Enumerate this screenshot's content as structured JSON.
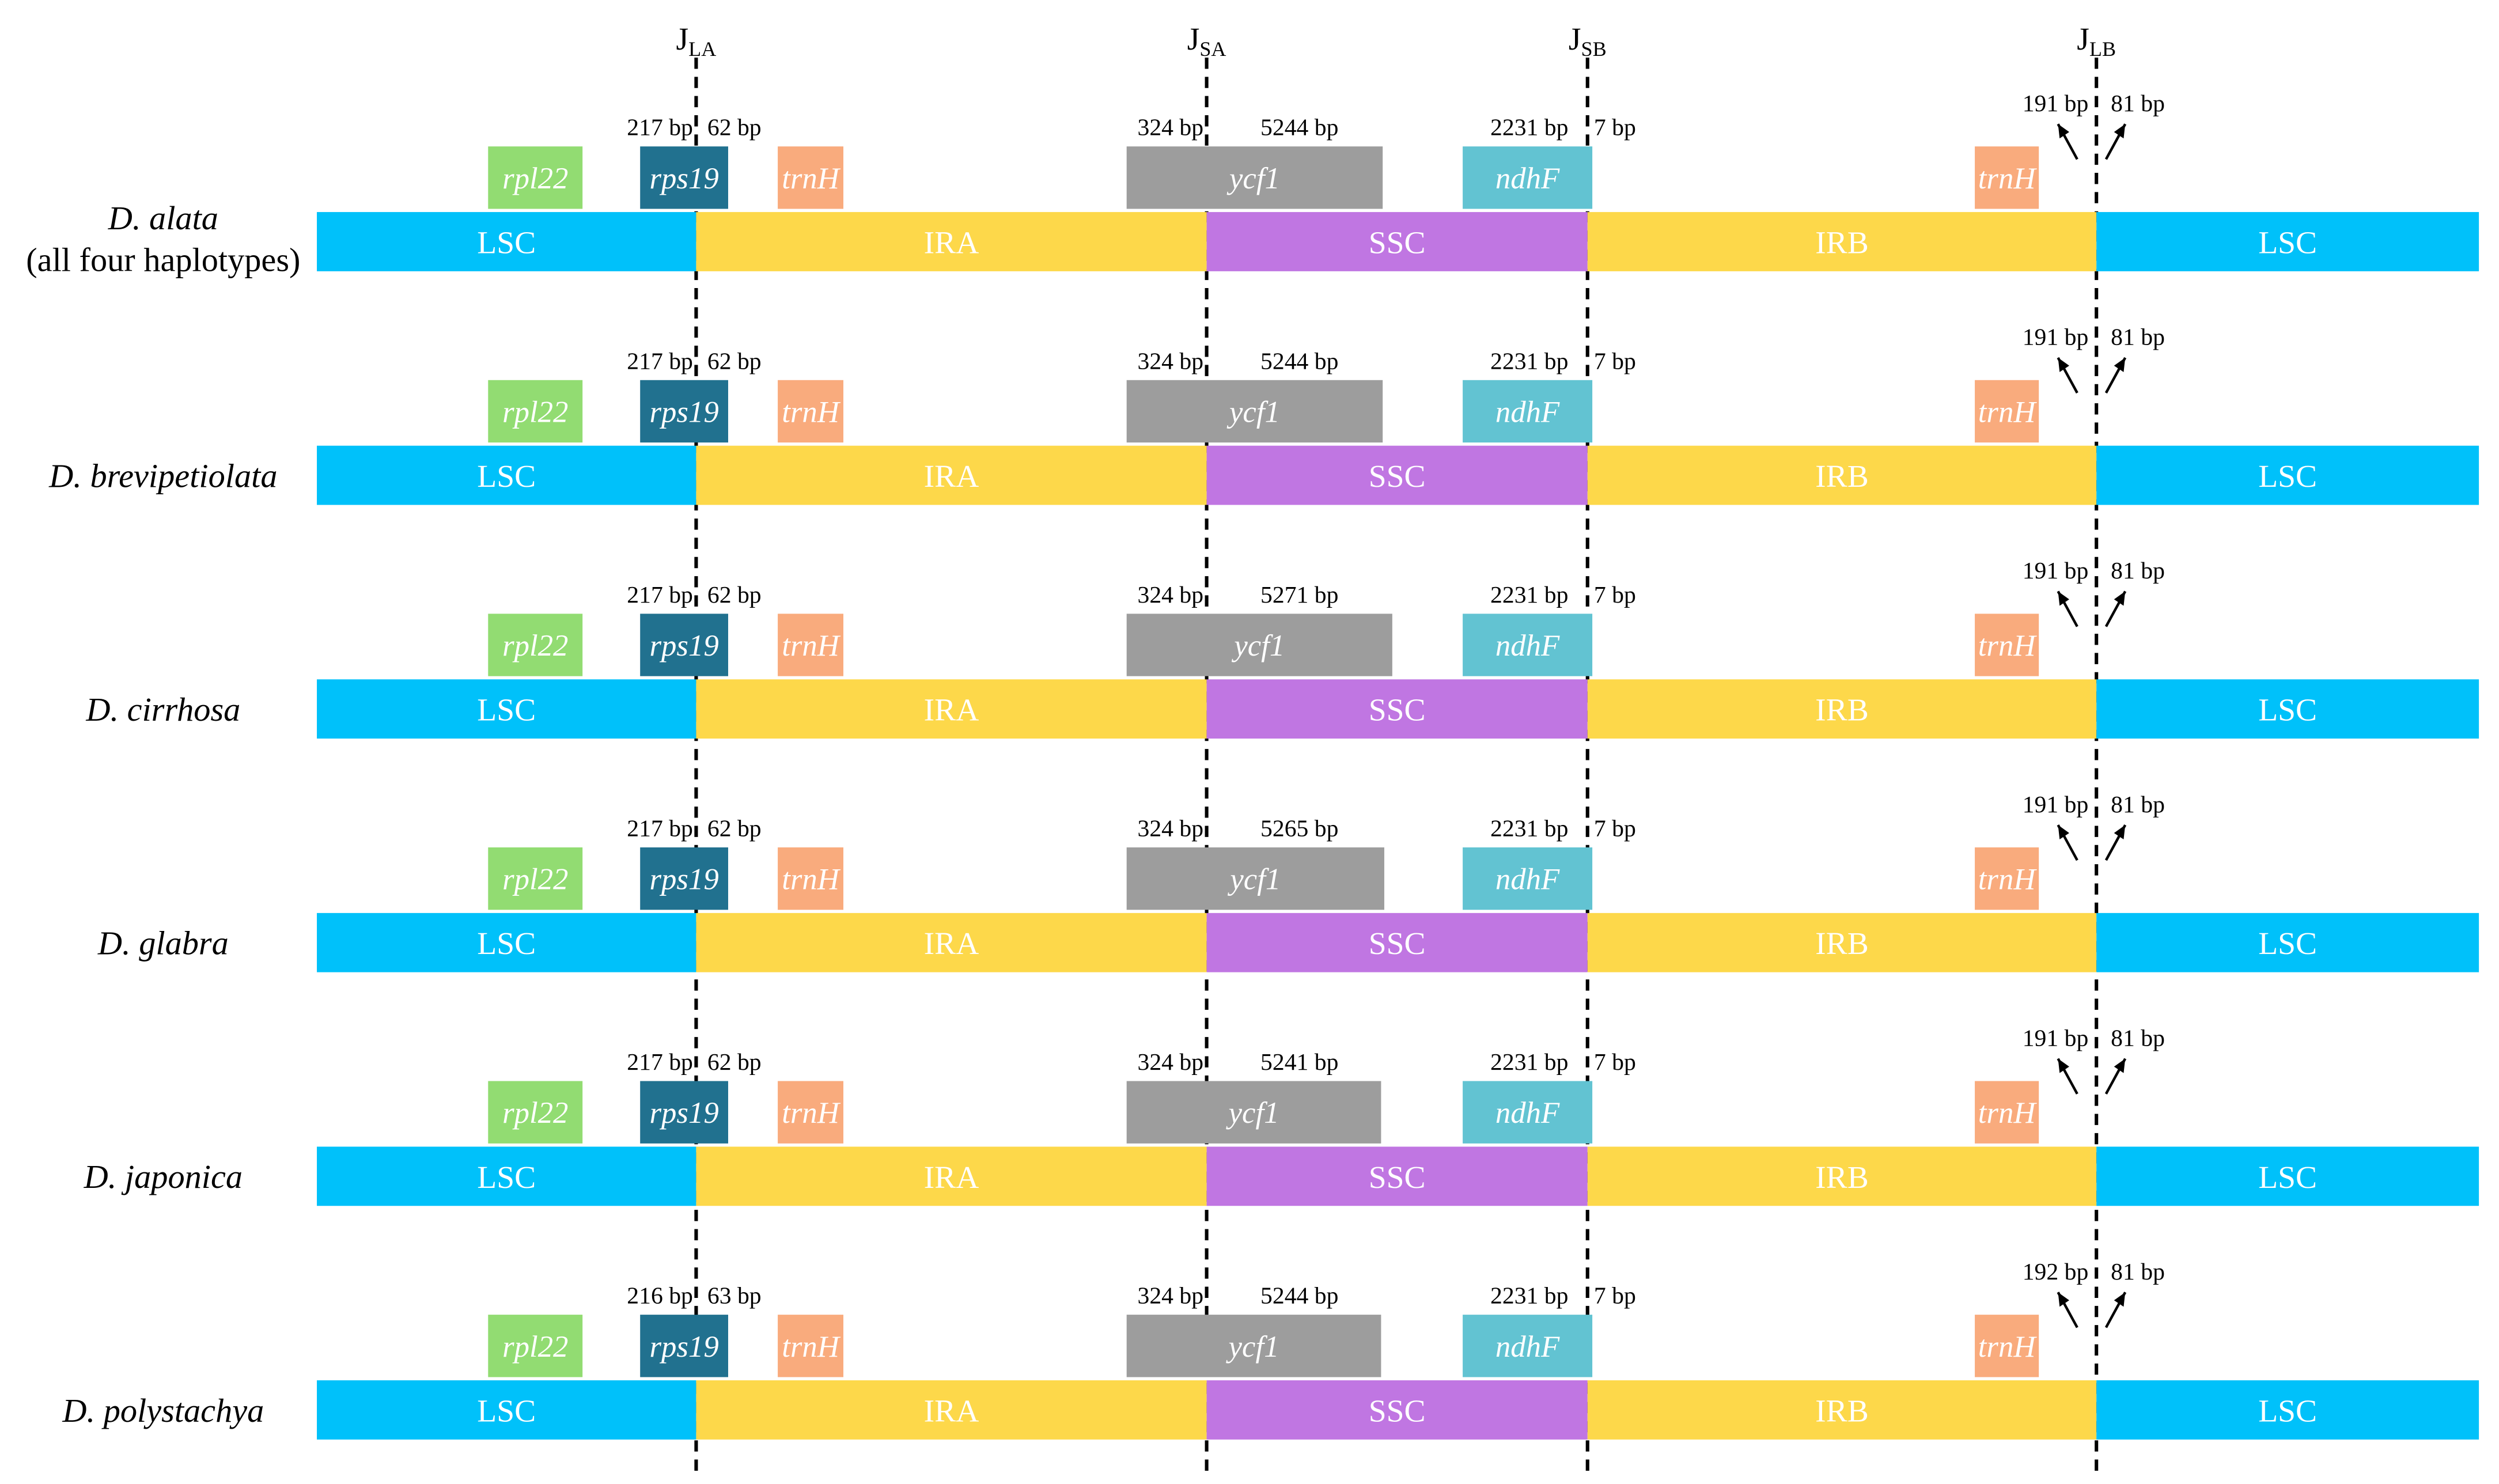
{
  "junctions": [
    {
      "main": "J",
      "sub": "LA"
    },
    {
      "main": "J",
      "sub": "SA"
    },
    {
      "main": "J",
      "sub": "SB"
    },
    {
      "main": "J",
      "sub": "LB"
    }
  ],
  "regions": [
    "LSC",
    "IRA",
    "SSC",
    "IRB",
    "LSC"
  ],
  "genes": {
    "rpl22": "rpl22",
    "rps19": "rps19",
    "trnH": "trnH",
    "ycf1": "ycf1",
    "ndhF": "ndhF"
  },
  "colors": {
    "LSC": "#00c1fa",
    "IR": "#fdd84a",
    "SSC": "#c076e2",
    "rpl22": "#92dc72",
    "rps19": "#21718f",
    "trnH": "#f9ab7d",
    "ycf1": "#9d9d9d",
    "ndhF": "#62c3d2",
    "text": "#000000",
    "label_on_color": "#ffffff"
  },
  "rows": [
    {
      "species_lines": [
        "D. alata",
        "(all four haplotypes)"
      ],
      "rps19_left": "217 bp",
      "rps19_right": "62 bp",
      "ycf1_left": "324 bp",
      "ycf1_right": "5244 bp",
      "ndhF_left": "2231 bp",
      "ndhF_right": "7 bp",
      "trnH_left": "191 bp",
      "trnH_right": "81 bp"
    },
    {
      "species_lines": [
        "D. brevipetiolata"
      ],
      "rps19_left": "217 bp",
      "rps19_right": "62 bp",
      "ycf1_left": "324 bp",
      "ycf1_right": "5244 bp",
      "ndhF_left": "2231 bp",
      "ndhF_right": "7 bp",
      "trnH_left": "191 bp",
      "trnH_right": "81 bp"
    },
    {
      "species_lines": [
        "D. cirrhosa"
      ],
      "rps19_left": "217 bp",
      "rps19_right": "62 bp",
      "ycf1_left": "324 bp",
      "ycf1_right": "5271 bp",
      "ndhF_left": "2231 bp",
      "ndhF_right": "7 bp",
      "trnH_left": "191 bp",
      "trnH_right": "81 bp"
    },
    {
      "species_lines": [
        "D. glabra"
      ],
      "rps19_left": "217 bp",
      "rps19_right": "62 bp",
      "ycf1_left": "324 bp",
      "ycf1_right": "5265 bp",
      "ndhF_left": "2231 bp",
      "ndhF_right": "7 bp",
      "trnH_left": "191 bp",
      "trnH_right": "81 bp"
    },
    {
      "species_lines": [
        "D. japonica"
      ],
      "rps19_left": "217 bp",
      "rps19_right": "62 bp",
      "ycf1_left": "324 bp",
      "ycf1_right": "5241 bp",
      "ndhF_left": "2231 bp",
      "ndhF_right": "7 bp",
      "trnH_left": "191 bp",
      "trnH_right": "81 bp"
    },
    {
      "species_lines": [
        "D. polystachya"
      ],
      "rps19_left": "216 bp",
      "rps19_right": "63 bp",
      "ycf1_left": "324 bp",
      "ycf1_right": "5244 bp",
      "ndhF_left": "2231 bp",
      "ndhF_right": "7 bp",
      "trnH_left": "192 bp",
      "trnH_right": "81 bp"
    }
  ]
}
